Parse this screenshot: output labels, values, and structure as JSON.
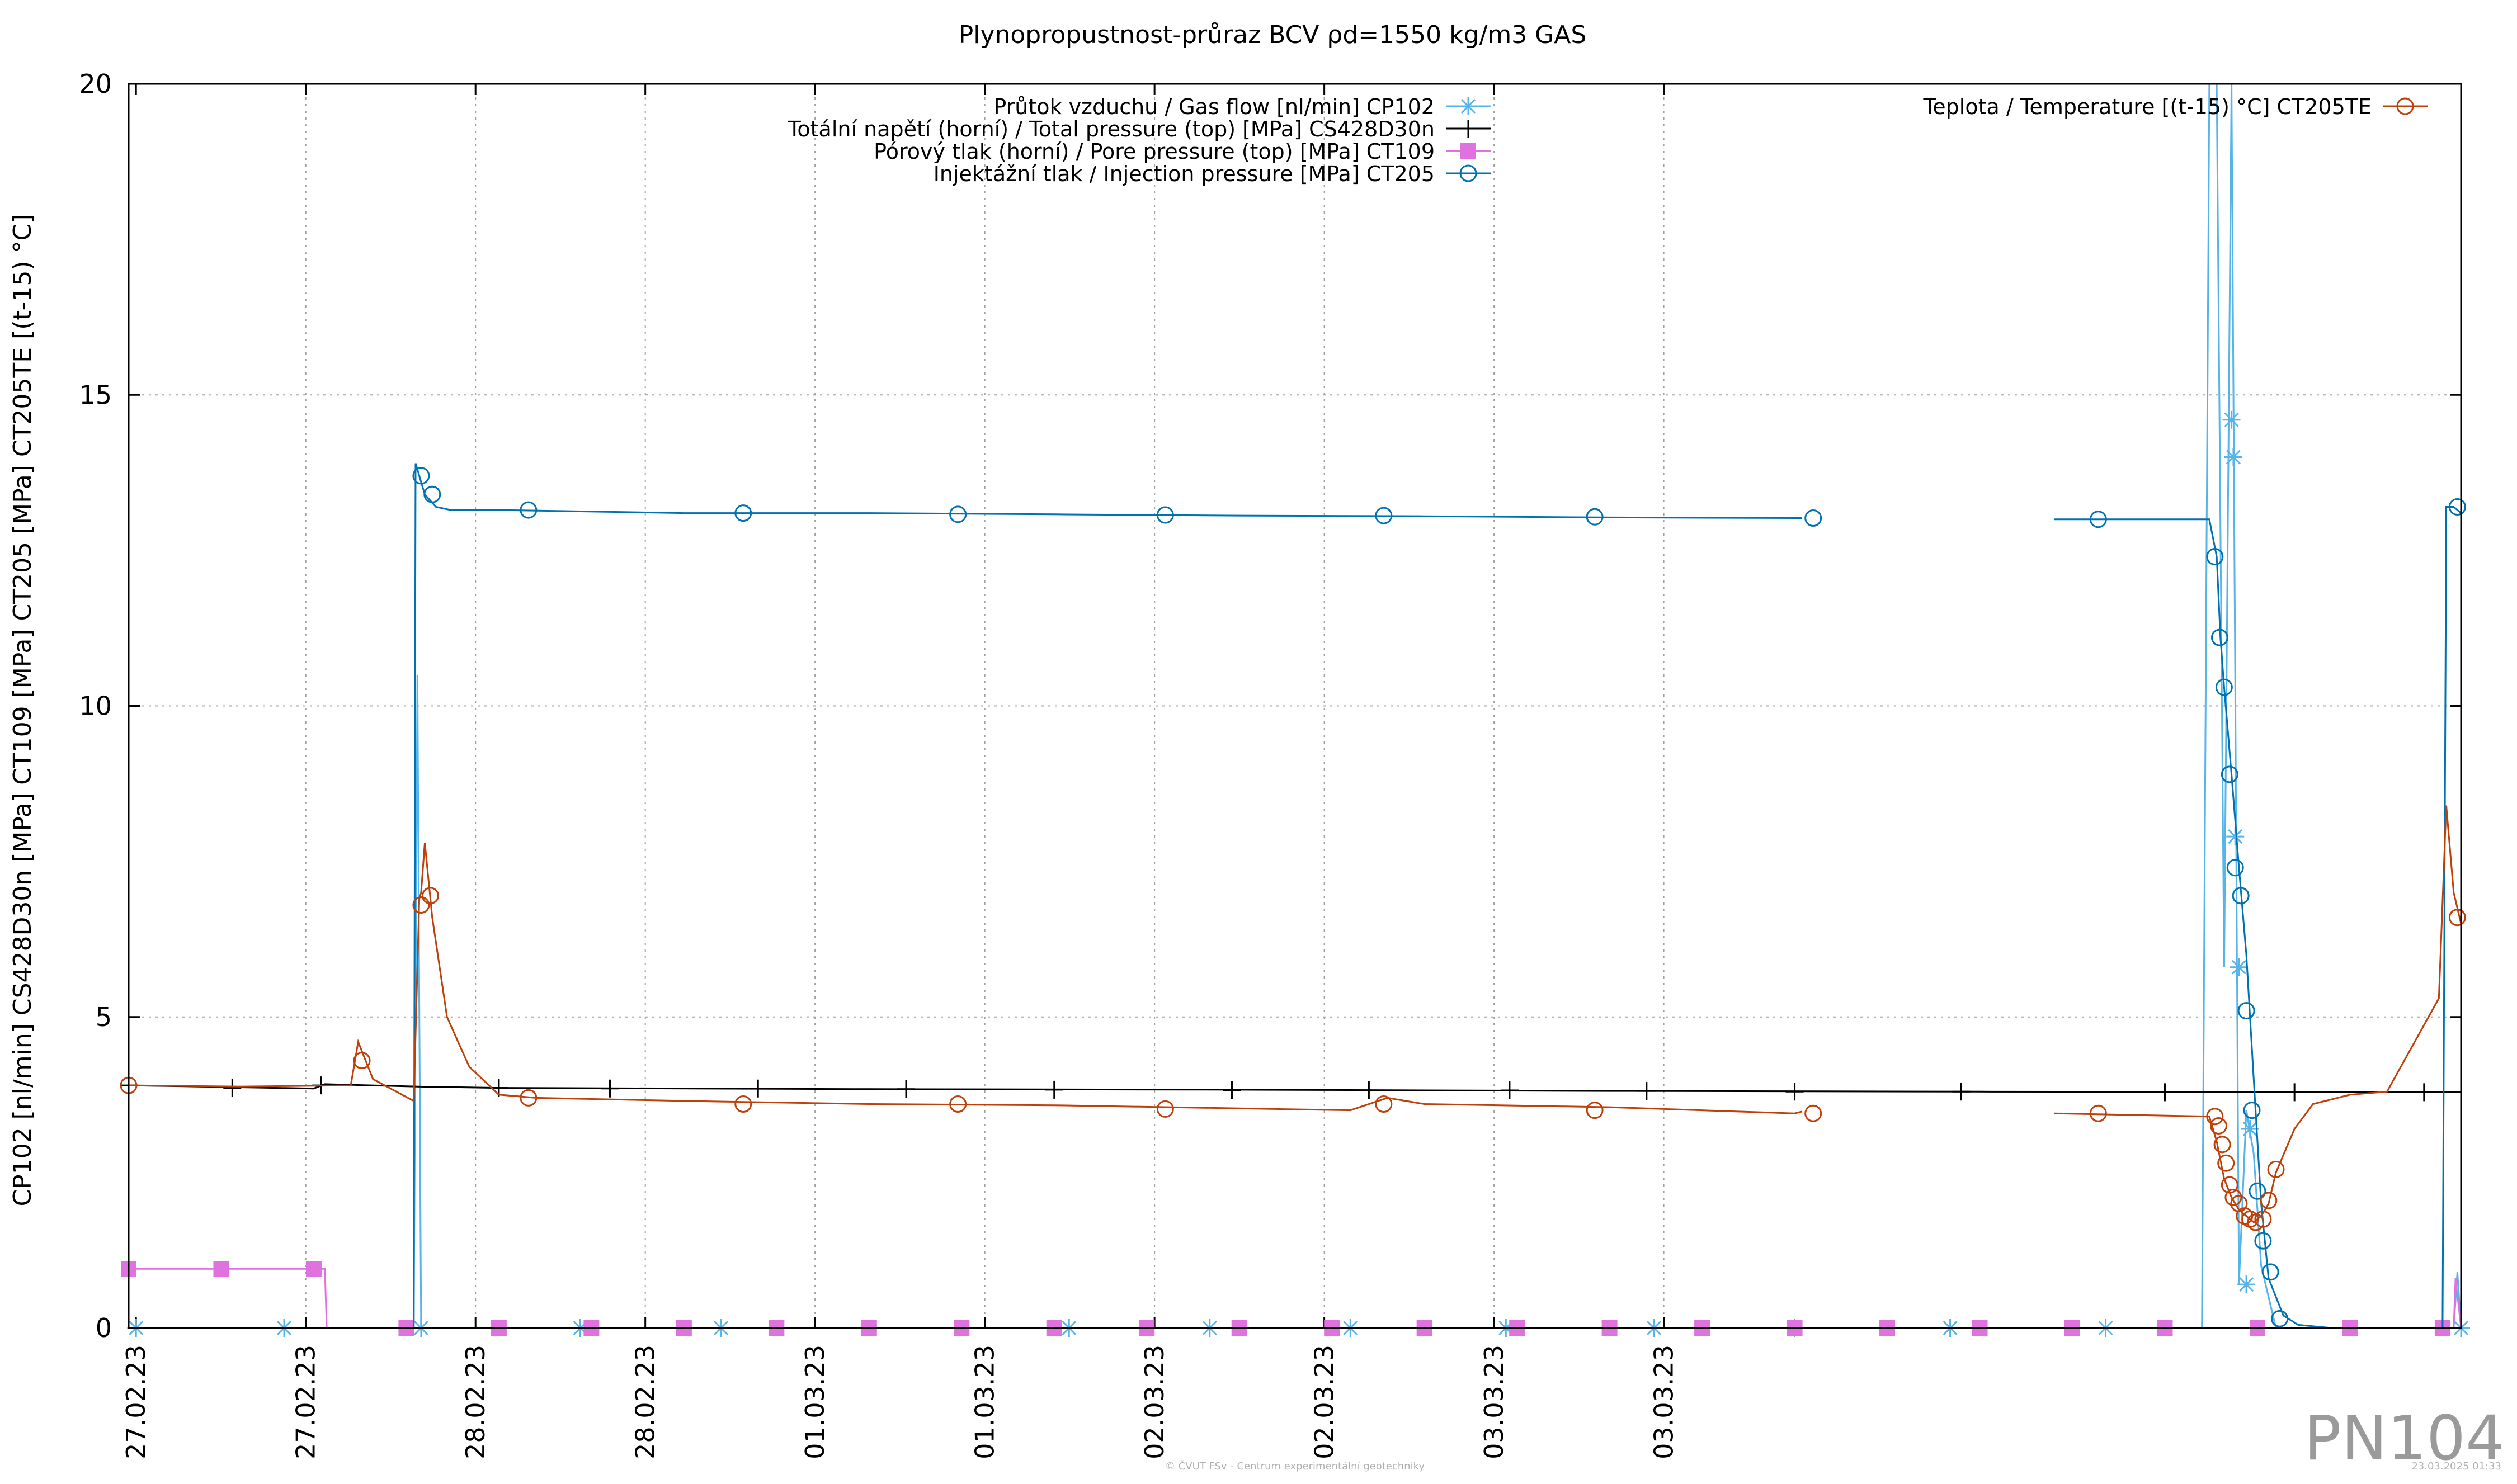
{
  "chart_data": {
    "type": "line",
    "title": "Plynopropustnost-průraz BCV ρd=1550 kg/m3 GAS",
    "ylabel": "CP102 [nl/min] CS428D30n [MPa] CT109 [MPa] CT205 [MPa] CT205TE [(t-15) °C]",
    "xlabel": "",
    "ylim": [
      0,
      20
    ],
    "yticks": [
      "0",
      "5",
      "10",
      "15",
      "20"
    ],
    "xlim": [
      0,
      6.3
    ],
    "xticks": [
      "27.02.23",
      "27.02.23",
      "28.02.23",
      "28.02.23",
      "01.03.23",
      "01.03.23",
      "02.03.23",
      "02.03.23",
      "03.03.23",
      "03.03.23"
    ],
    "grid": true,
    "legend_left": [
      {
        "name": "Průtok vzduchu / Gas flow [nl/min] CP102",
        "color": "#56b4e9",
        "marker": "star"
      },
      {
        "name": "Totální napětí (horní) / Total pressure (top) [MPa] CS428D30n",
        "color": "#000000",
        "marker": "plus"
      },
      {
        "name": "Pórový tlak (horní) / Pore pressure (top) [MPa] CT109",
        "color": "#e072e0",
        "marker": "square"
      },
      {
        "name": "Injektážní tlak / Injection pressure [MPa] CT205",
        "color": "#0072b2",
        "marker": "circle"
      }
    ],
    "legend_right": [
      {
        "name": "Teplota / Temperature [(t-15) °C] CT205TE",
        "color": "#c0400a",
        "marker": "circle"
      }
    ],
    "series": [
      {
        "name": "Průtok vzduchu / Gas flow [nl/min] CP102",
        "color": "#56b4e9",
        "x": [
          0,
          0.02,
          0.4,
          0.77,
          0.78,
          0.79,
          1.2,
          1.6,
          2.0,
          2.4,
          2.8,
          3.2,
          3.6,
          4.0,
          4.4,
          4.8,
          5.2,
          5.6,
          5.62,
          5.64,
          5.66,
          5.68,
          5.7,
          5.72,
          5.74,
          5.76,
          5.8,
          6.28,
          6.29,
          6.3
        ],
        "y": [
          0,
          0,
          0,
          0,
          10.5,
          0,
          0,
          0,
          0,
          0,
          0,
          0,
          0,
          0,
          0,
          0,
          0,
          0,
          20,
          20,
          5.8,
          20,
          0.7,
          3.5,
          2.8,
          1.0,
          0,
          0,
          0.9,
          0
        ],
        "markers_x": [
          0.02,
          0.42,
          0.79,
          1.22,
          1.6,
          2.54,
          2.92,
          3.3,
          3.72,
          4.12,
          4.5,
          4.92,
          5.34,
          5.68,
          5.685,
          5.69,
          5.7,
          5.72,
          5.73,
          6.3
        ],
        "markers_y": [
          0,
          0,
          0,
          0,
          0,
          0,
          0,
          0,
          0,
          0,
          0,
          0,
          0,
          14.6,
          14.0,
          7.9,
          5.8,
          0.7,
          3.2,
          0
        ]
      },
      {
        "name": "Totální napětí (horní) / Total pressure (top) [MPa] CS428D30n",
        "color": "#000000",
        "x": [
          0,
          0.5,
          0.53,
          0.78,
          1.0,
          2.0,
          3.0,
          4.0,
          5.0,
          6.3
        ],
        "y": [
          3.9,
          3.85,
          3.92,
          3.88,
          3.86,
          3.84,
          3.83,
          3.81,
          3.8,
          3.79
        ],
        "markers_x": [
          0,
          0.28,
          0.52,
          1.0,
          1.3,
          1.7,
          2.1,
          2.5,
          2.98,
          3.35,
          3.73,
          4.1,
          4.5,
          4.95,
          5.5,
          5.85,
          6.2
        ],
        "markers_y": [
          3.9,
          3.86,
          3.9,
          3.86,
          3.85,
          3.85,
          3.84,
          3.83,
          3.82,
          3.82,
          3.82,
          3.81,
          3.8,
          3.8,
          3.79,
          3.79,
          3.79
        ]
      },
      {
        "name": "Pórový tlak (horní) / Pore pressure (top) [MPa] CT109",
        "color": "#e072e0",
        "x": [
          0,
          0.5,
          0.53,
          0.535,
          6.28,
          6.285,
          6.3
        ],
        "y": [
          0.95,
          0.95,
          0.95,
          0,
          0,
          0.8,
          0
        ],
        "markers_x": [
          0,
          0.25,
          0.5,
          0.75,
          1.0,
          1.25,
          1.5,
          1.75,
          2.0,
          2.25,
          2.5,
          2.75,
          3.0,
          3.25,
          3.5,
          3.75,
          4.0,
          4.25,
          4.5,
          4.75,
          5.0,
          5.25,
          5.5,
          5.75,
          6.0,
          6.25
        ],
        "markers_y": [
          0.95,
          0.95,
          0.95,
          0,
          0,
          0,
          0,
          0,
          0,
          0,
          0,
          0,
          0,
          0,
          0,
          0,
          0,
          0,
          0,
          0,
          0,
          0,
          0,
          0,
          0,
          0
        ]
      },
      {
        "name": "Injektážní tlak / Injection pressure [MPa] CT205",
        "color": "#0072b2",
        "x": [
          0.77,
          0.775,
          0.785,
          0.8,
          0.83,
          0.87,
          1.0,
          1.5,
          2.0,
          2.5,
          3.0,
          3.5,
          4.0,
          4.5,
          4.52,
          null,
          5.2,
          5.62,
          5.64,
          5.65,
          5.66,
          5.68,
          5.7,
          5.72,
          5.74,
          5.76,
          5.78,
          5.82,
          5.86,
          5.95,
          6.25,
          6.26,
          6.28,
          6.3
        ],
        "y": [
          0,
          13.9,
          13.7,
          13.4,
          13.2,
          13.15,
          13.15,
          13.1,
          13.1,
          13.08,
          13.06,
          13.05,
          13.03,
          13.02,
          13.02,
          null,
          13.0,
          13.0,
          12.4,
          11.1,
          10.3,
          8.9,
          7.4,
          6.0,
          4.0,
          2.0,
          0.8,
          0.2,
          0.05,
          0,
          0,
          13.2,
          13.2,
          13.1
        ],
        "markers_x": [
          0.79,
          0.82,
          1.08,
          1.66,
          2.24,
          2.8,
          3.39,
          3.96,
          4.55,
          5.32,
          5.635,
          5.648,
          5.66,
          5.675,
          5.69,
          5.705,
          5.72,
          5.735,
          5.75,
          5.765,
          5.785,
          5.81,
          6.29
        ],
        "markers_y": [
          13.7,
          13.4,
          13.15,
          13.1,
          13.08,
          13.07,
          13.06,
          13.04,
          13.02,
          13.0,
          12.4,
          11.1,
          10.3,
          8.9,
          7.4,
          6.95,
          5.1,
          3.5,
          2.2,
          1.4,
          0.9,
          0.15,
          13.2
        ]
      },
      {
        "name": "Teplota / Temperature [(t-15) °C] CT205TE",
        "color": "#c0400a",
        "x": [
          0,
          0.3,
          0.6,
          0.62,
          0.66,
          0.77,
          0.785,
          0.79,
          0.8,
          0.82,
          0.86,
          0.92,
          1.0,
          1.1,
          1.5,
          2.0,
          2.5,
          3.3,
          3.4,
          3.5,
          4.0,
          4.5,
          4.52,
          null,
          5.2,
          5.62,
          5.64,
          5.66,
          5.68,
          5.7,
          5.72,
          5.74,
          5.76,
          5.78,
          5.8,
          5.85,
          5.9,
          6.0,
          6.1,
          6.24,
          6.26,
          6.28,
          6.3
        ],
        "y": [
          3.9,
          3.88,
          3.9,
          4.6,
          4.0,
          3.65,
          6.9,
          7.0,
          7.8,
          6.6,
          5.0,
          4.2,
          3.75,
          3.7,
          3.65,
          3.6,
          3.58,
          3.5,
          3.7,
          3.6,
          3.55,
          3.45,
          3.48,
          null,
          3.45,
          3.4,
          3.0,
          2.4,
          2.1,
          1.9,
          1.8,
          1.7,
          1.8,
          2.0,
          2.5,
          3.2,
          3.6,
          3.75,
          3.8,
          5.3,
          8.4,
          7.0,
          6.5
        ],
        "markers_x": [
          0,
          0.63,
          0.79,
          0.815,
          1.08,
          1.66,
          2.24,
          2.8,
          3.39,
          3.96,
          4.55,
          5.32,
          5.635,
          5.645,
          5.655,
          5.665,
          5.675,
          5.685,
          5.7,
          5.715,
          5.73,
          5.745,
          5.765,
          5.78,
          5.8,
          6.29
        ],
        "markers_y": [
          3.9,
          4.3,
          6.8,
          6.95,
          3.7,
          3.6,
          3.6,
          3.52,
          3.6,
          3.5,
          3.45,
          3.45,
          3.4,
          3.25,
          2.95,
          2.65,
          2.3,
          2.1,
          2.0,
          1.8,
          1.75,
          1.7,
          1.75,
          2.05,
          2.55,
          6.6
        ]
      }
    ]
  },
  "watermark": "PN104",
  "footer_left": "© ČVUT FSv - Centrum experimentální geotechniky",
  "footer_right": "23.03.2025 01:33"
}
